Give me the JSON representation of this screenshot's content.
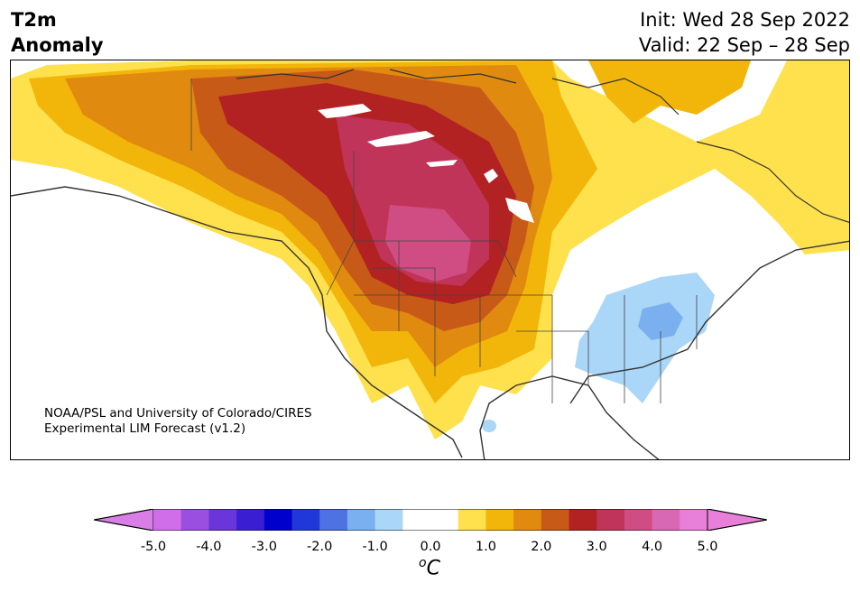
{
  "header": {
    "title_line1": "T2m",
    "title_line2": "Anomaly",
    "init_text": "Init: Wed 28 Sep 2022",
    "valid_text": "Valid: 22 Sep – 28 Sep"
  },
  "credit": {
    "line1": "NOAA/PSL and University of Colorado/CIRES",
    "line2": "Experimental LIM Forecast (v1.2)"
  },
  "colorbar": {
    "unit_super": "o",
    "unit": "C",
    "tick_labels": [
      "-5.0",
      "-4.0",
      "-3.0",
      "-2.0",
      "-1.0",
      "0.0",
      "1.0",
      "2.0",
      "3.0",
      "4.0",
      "5.0"
    ],
    "bin_colors": [
      "#cf6ee8",
      "#9b4fe0",
      "#6b36d9",
      "#3a1fd2",
      "#0000cc",
      "#2138d8",
      "#4f72e3",
      "#7ab0ef",
      "#aad6f8",
      "#ffffff",
      "#ffffff",
      "#ffe14d",
      "#f2b50a",
      "#e08a10",
      "#c85a18",
      "#b22222",
      "#c0345a",
      "#cf4d82",
      "#d968b4",
      "#e87fd8"
    ],
    "under_color": "#d97ee6",
    "over_color": "#e87fd8"
  },
  "map": {
    "region": "North America",
    "colors": {
      "land_outline": "#333333",
      "ice_ocean": "#ffffff"
    }
  }
}
